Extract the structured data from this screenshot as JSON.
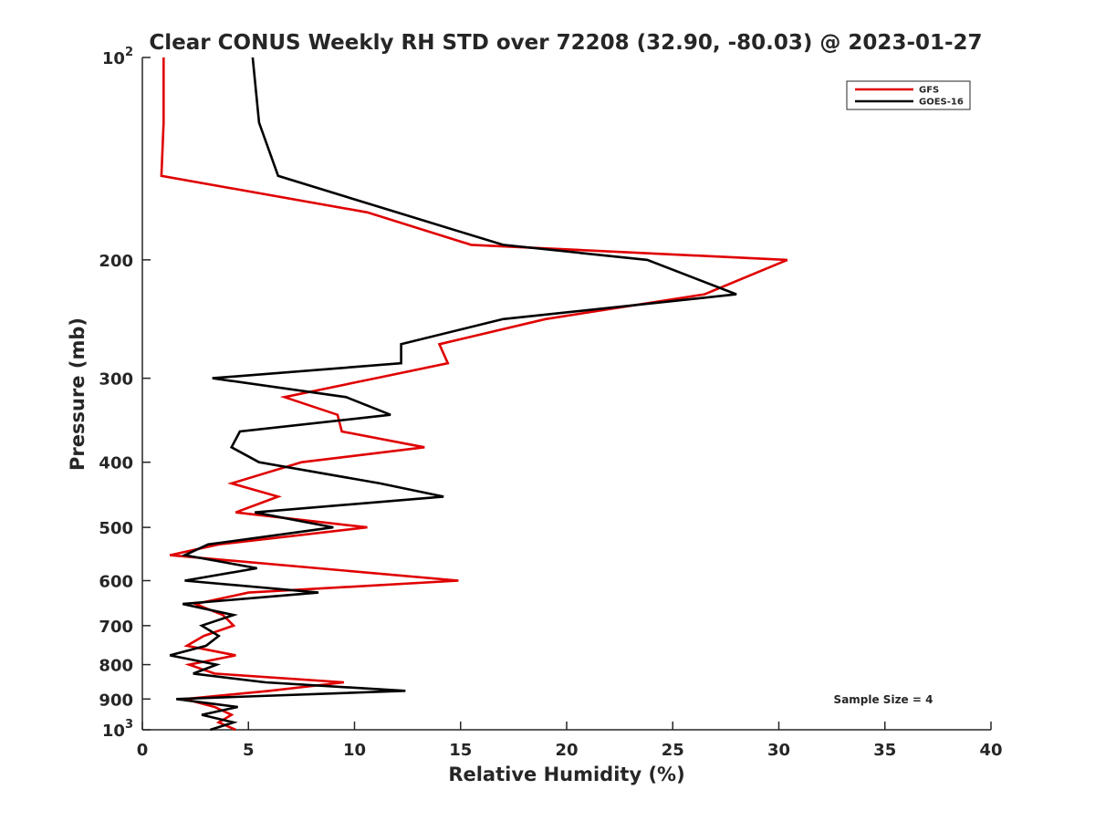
{
  "chart_data": {
    "type": "line",
    "title": "Clear CONUS Weekly RH STD over 72208 (32.90, -80.03) @ 2023-01-27",
    "xlabel": "Relative Humidity (%)",
    "ylabel": "Pressure (mb)",
    "xlim": [
      0,
      40
    ],
    "ylim": [
      100,
      1000
    ],
    "y_scale": "log",
    "y_reversed": true,
    "grid": false,
    "legend_position": "top-right",
    "x_ticks": [
      0,
      5,
      10,
      15,
      20,
      25,
      30,
      35,
      40
    ],
    "x_tick_labels": [
      "0",
      "5",
      "10",
      "15",
      "20",
      "25",
      "30",
      "35",
      "40"
    ],
    "y_ticks": [
      100,
      200,
      300,
      400,
      500,
      600,
      700,
      800,
      900,
      1000
    ],
    "y_tick_labels": [
      {
        "base": "10",
        "exp": "2"
      },
      {
        "base": "200",
        "exp": ""
      },
      {
        "base": "300",
        "exp": ""
      },
      {
        "base": "400",
        "exp": ""
      },
      {
        "base": "500",
        "exp": ""
      },
      {
        "base": "600",
        "exp": ""
      },
      {
        "base": "700",
        "exp": ""
      },
      {
        "base": "800",
        "exp": ""
      },
      {
        "base": "900",
        "exp": ""
      },
      {
        "base": "10",
        "exp": "3"
      }
    ],
    "annotation": "Sample Size = 4",
    "series": [
      {
        "name": "GFS",
        "color": "#e00000",
        "points": [
          [
            1.0,
            100
          ],
          [
            1.0,
            125
          ],
          [
            0.9,
            150
          ],
          [
            10.6,
            170
          ],
          [
            15.5,
            190
          ],
          [
            30.4,
            200
          ],
          [
            26.5,
            225
          ],
          [
            19.0,
            245
          ],
          [
            14.0,
            267
          ],
          [
            14.4,
            285
          ],
          [
            11.0,
            300
          ],
          [
            6.7,
            320
          ],
          [
            9.2,
            340
          ],
          [
            9.4,
            360
          ],
          [
            13.3,
            380
          ],
          [
            7.5,
            400
          ],
          [
            4.2,
            430
          ],
          [
            6.4,
            450
          ],
          [
            4.4,
            475
          ],
          [
            10.6,
            500
          ],
          [
            3.6,
            530
          ],
          [
            1.3,
            550
          ],
          [
            14.9,
            600
          ],
          [
            5.0,
            625
          ],
          [
            2.5,
            650
          ],
          [
            3.8,
            675
          ],
          [
            4.3,
            700
          ],
          [
            2.9,
            725
          ],
          [
            2.1,
            750
          ],
          [
            4.4,
            775
          ],
          [
            2.2,
            800
          ],
          [
            3.4,
            825
          ],
          [
            9.5,
            850
          ],
          [
            6.0,
            875
          ],
          [
            2.0,
            900
          ],
          [
            3.4,
            925
          ],
          [
            4.2,
            950
          ],
          [
            3.6,
            975
          ],
          [
            4.4,
            1000
          ]
        ]
      },
      {
        "name": "GOES-16",
        "color": "#000000",
        "points": [
          [
            5.2,
            100
          ],
          [
            5.5,
            125
          ],
          [
            6.4,
            150
          ],
          [
            12.0,
            170
          ],
          [
            17.0,
            190
          ],
          [
            23.8,
            200
          ],
          [
            28.0,
            225
          ],
          [
            17.0,
            245
          ],
          [
            12.2,
            267
          ],
          [
            12.2,
            285
          ],
          [
            3.3,
            300
          ],
          [
            9.6,
            320
          ],
          [
            11.7,
            340
          ],
          [
            4.6,
            360
          ],
          [
            4.2,
            380
          ],
          [
            5.5,
            400
          ],
          [
            11.2,
            430
          ],
          [
            14.2,
            450
          ],
          [
            5.3,
            475
          ],
          [
            9.0,
            500
          ],
          [
            3.1,
            530
          ],
          [
            2.0,
            550
          ],
          [
            5.4,
            575
          ],
          [
            2.0,
            600
          ],
          [
            8.3,
            625
          ],
          [
            1.9,
            650
          ],
          [
            4.3,
            675
          ],
          [
            2.8,
            700
          ],
          [
            3.6,
            725
          ],
          [
            3.0,
            750
          ],
          [
            1.3,
            775
          ],
          [
            3.5,
            800
          ],
          [
            2.4,
            825
          ],
          [
            5.8,
            850
          ],
          [
            12.4,
            875
          ],
          [
            1.6,
            900
          ],
          [
            4.5,
            925
          ],
          [
            2.8,
            950
          ],
          [
            4.3,
            975
          ],
          [
            3.2,
            1000
          ]
        ]
      }
    ]
  }
}
